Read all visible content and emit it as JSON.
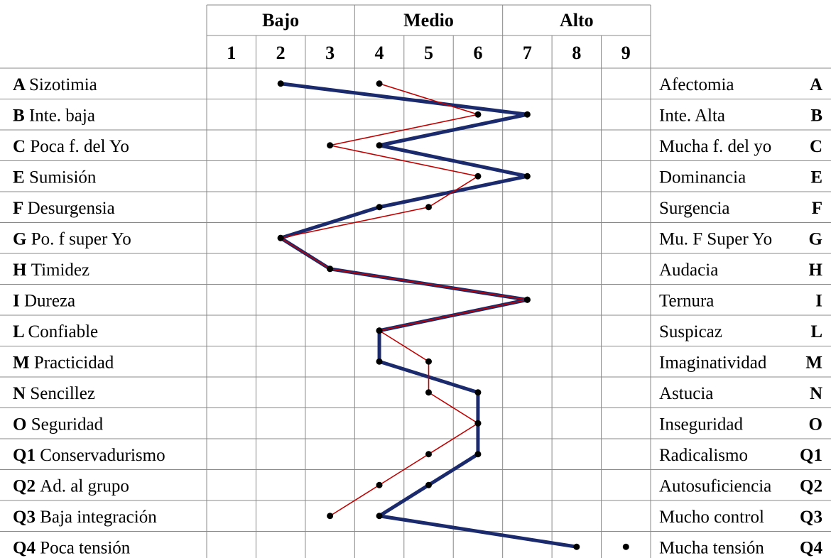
{
  "chart_data": {
    "type": "line",
    "x_scale": [
      1,
      2,
      3,
      4,
      5,
      6,
      7,
      8,
      9
    ],
    "bands": [
      {
        "label": "Bajo",
        "from": 1,
        "to": 3
      },
      {
        "label": "Medio",
        "from": 4,
        "to": 6
      },
      {
        "label": "Alto",
        "from": 7,
        "to": 9
      }
    ],
    "factors": [
      {
        "code": "A",
        "low": "Sizotimia",
        "high": "Afectomia"
      },
      {
        "code": "B",
        "low": "Inte. baja",
        "high": "Inte. Alta"
      },
      {
        "code": "C",
        "low": "Poca f. del Yo",
        "high": "Mucha f. del yo"
      },
      {
        "code": "E",
        "low": "Sumisión",
        "high": "Dominancia"
      },
      {
        "code": "F",
        "low": "Desurgensia",
        "high": "Surgencia"
      },
      {
        "code": "G",
        "low": "Po. f super Yo",
        "high": "Mu. F Super Yo"
      },
      {
        "code": "H",
        "low": "Timidez",
        "high": "Audacia"
      },
      {
        "code": "I",
        "low": "Dureza",
        "high": "Ternura"
      },
      {
        "code": "L",
        "low": "Confiable",
        "high": "Suspicaz"
      },
      {
        "code": "M",
        "low": "Practicidad",
        "high": "Imaginatividad"
      },
      {
        "code": "N",
        "low": "Sencillez",
        "high": "Astucia"
      },
      {
        "code": "O",
        "low": "Seguridad",
        "high": "Inseguridad"
      },
      {
        "code": "Q1",
        "low": "Conservadurismo",
        "high": "Radicalismo"
      },
      {
        "code": "Q2",
        "low": "Ad. al grupo",
        "high": "Autosuficiencia"
      },
      {
        "code": "Q3",
        "low": "Baja integración",
        "high": "Mucho control"
      },
      {
        "code": "Q4",
        "low": "Poca tensión",
        "high": "Mucha tensión"
      }
    ],
    "series": [
      {
        "color": "#1a2a6c",
        "values": [
          2,
          7,
          4,
          7,
          4,
          2,
          3,
          7,
          4,
          4,
          6,
          6,
          6,
          5,
          4,
          8
        ]
      },
      {
        "color": "#c00000",
        "values": [
          4,
          6,
          3,
          6,
          5,
          2,
          3,
          7,
          4,
          5,
          5,
          6,
          5,
          4,
          3,
          9
        ]
      }
    ],
    "connected_points": [
      16,
      15
    ]
  }
}
